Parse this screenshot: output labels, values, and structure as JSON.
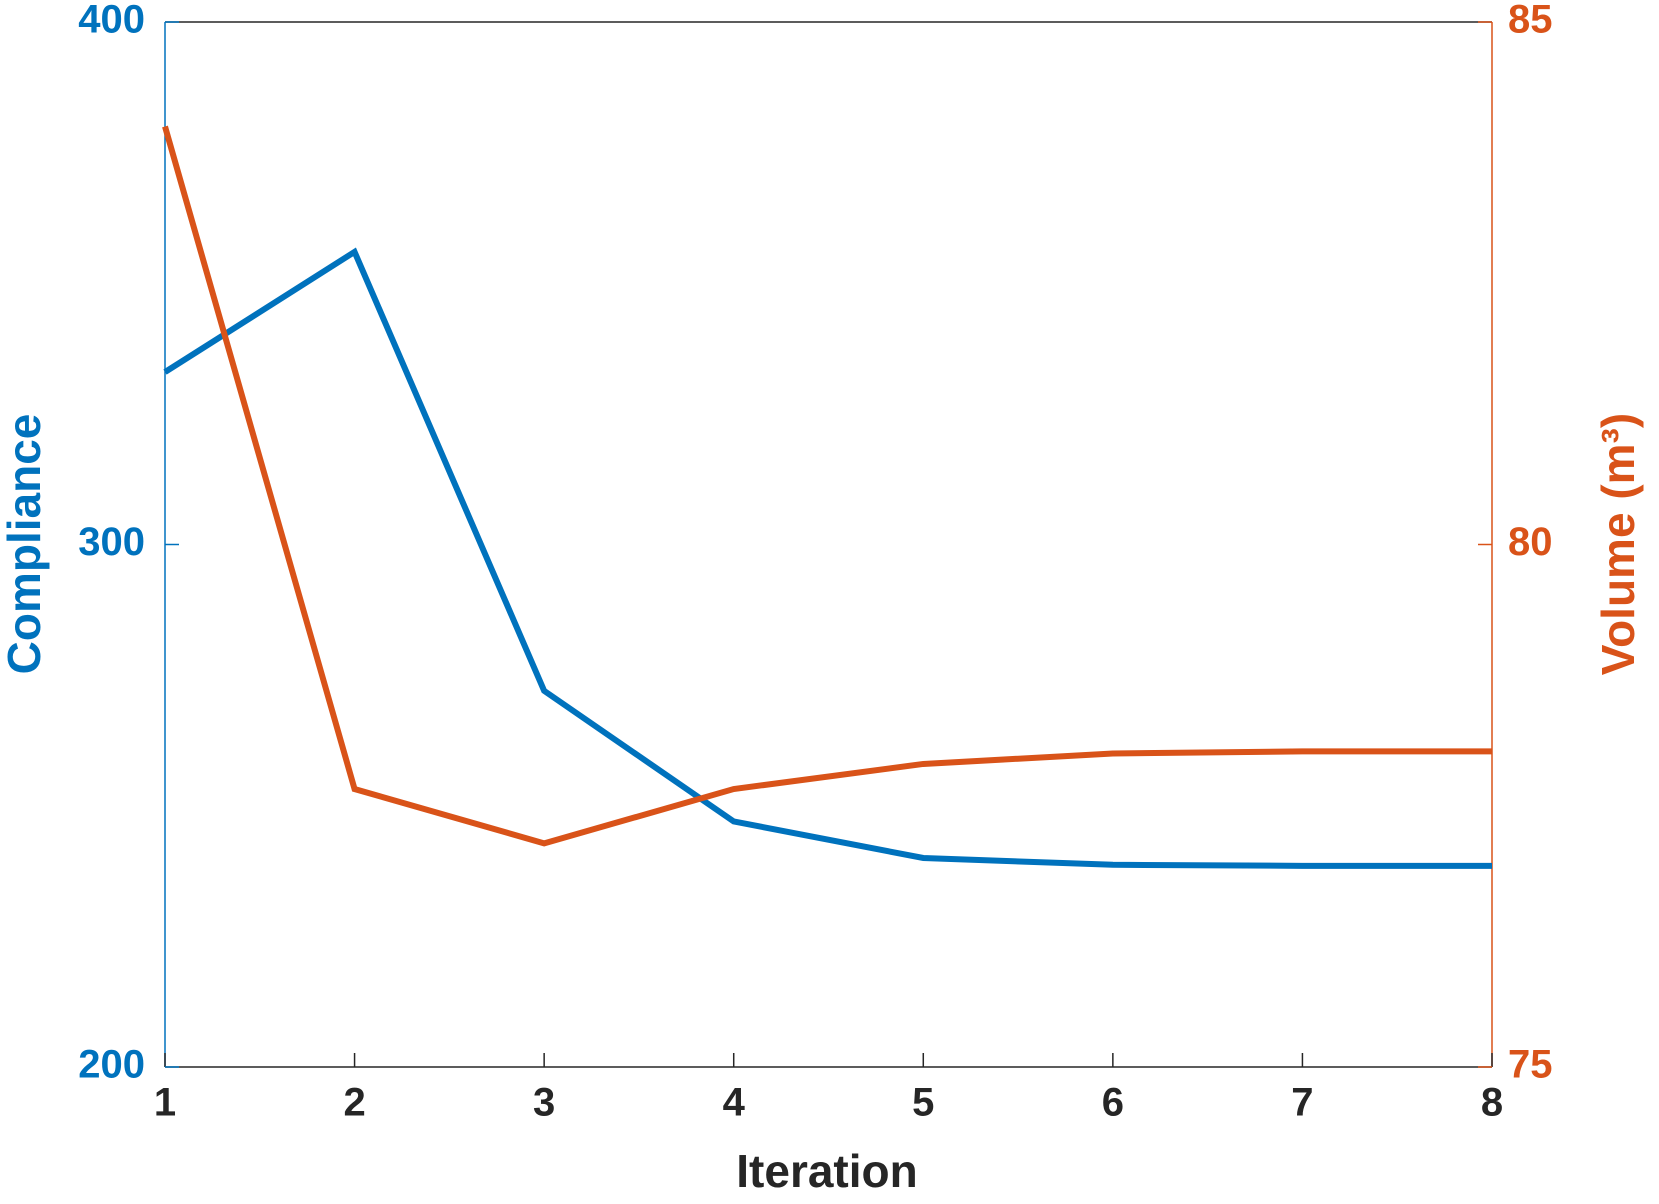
{
  "chart_data": {
    "type": "line",
    "xlabel": "Iteration",
    "ylabel": "Compliance",
    "y2label": "Volume (m³)",
    "x": [
      1,
      2,
      3,
      4,
      5,
      6,
      7,
      8
    ],
    "xlim": [
      1,
      8
    ],
    "xticks": [
      1,
      2,
      3,
      4,
      5,
      6,
      7,
      8
    ],
    "ylim": [
      200,
      400
    ],
    "yticks": [
      200,
      300,
      400
    ],
    "ycolor": "#0072BD",
    "y2lim": [
      75,
      85
    ],
    "y2ticks": [
      75,
      80,
      85
    ],
    "y2color": "#D95319",
    "grid": false,
    "series": [
      {
        "color": "#0072BD",
        "axis": "y",
        "values": [
          333,
          356,
          272,
          247,
          240,
          238.7,
          238.5,
          238.5
        ]
      },
      {
        "color": "#D95319",
        "axis": "y2",
        "values": [
          84.0,
          77.66,
          77.14,
          77.66,
          77.9,
          78.0,
          78.02,
          78.02
        ]
      }
    ]
  }
}
